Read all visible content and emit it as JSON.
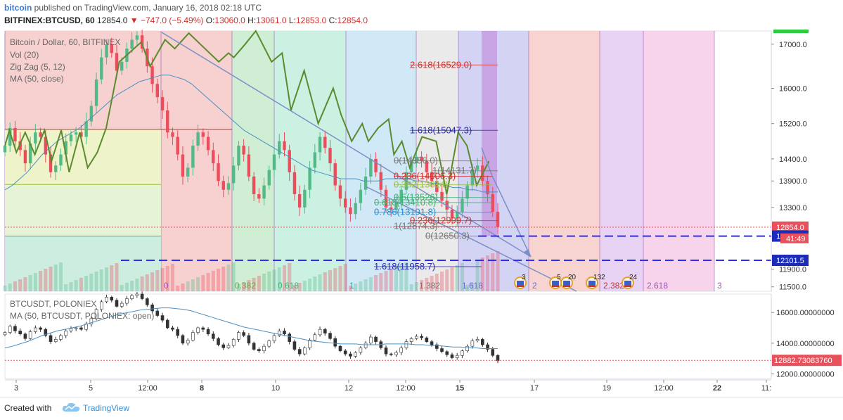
{
  "header": {
    "author": "bitcoin",
    "published_text": "published on TradingView.com, January 16, 2018 02:18 UTC",
    "symbol": "BITFINEX:BTCUSD, 60",
    "last": "12854.0",
    "change": "−747.0 (−5.49%)",
    "o_label": "O:",
    "o_value": "13060.0",
    "h_label": "H:",
    "h_value": "13061.0",
    "l_label": "L:",
    "l_value": "12853.0",
    "c_label": "C:",
    "c_value": "12854.0"
  },
  "footer": {
    "created": "Created with",
    "brand": "TradingView"
  },
  "colors": {
    "up": "#53b987",
    "down": "#eb4d5c",
    "zigzag": "#5b8a2f",
    "ma": "#4a90c2",
    "trend": "#7d8fc8",
    "dashed": "#2d2df0",
    "price_marker": "#e8505b",
    "axis_marker_blue": "#1c2cb8"
  },
  "chart_data": [
    {
      "type": "candlestick",
      "title": "Bitcoin / Dollar, 60, BITFINEX",
      "indicators": [
        "Vol (20)",
        "Zig Zag (5, 12)",
        "MA (50, close)"
      ],
      "y_ticks": [
        "17000.0",
        "16000.0",
        "15200.0",
        "14400.0",
        "13900.0",
        "13300.0",
        "11900.0",
        "11500.0"
      ],
      "ylim": [
        11400,
        17300
      ],
      "price_markers": [
        {
          "label": "12854.0",
          "value": 12854,
          "color": "#e8505b"
        },
        {
          "label": "12650.3",
          "value": 12650.3,
          "color": "#1c2cb8"
        },
        {
          "label": "12101.5",
          "value": 12101.5,
          "color": "#1c2cb8"
        }
      ],
      "countdown": "41:49",
      "close_series": [
        14700,
        15100,
        14800,
        14600,
        14300,
        14750,
        15000,
        14900,
        14500,
        14100,
        14250,
        14500,
        14800,
        14950,
        15000,
        14900,
        15250,
        15600,
        16200,
        16700,
        17000,
        16800,
        16400,
        16600,
        16900,
        17100,
        17200,
        16900,
        16500,
        16100,
        15800,
        15500,
        15000,
        14900,
        14500,
        14000,
        14200,
        14700,
        15000,
        14900,
        14600,
        14300,
        13900,
        13700,
        13850,
        14250,
        14700,
        14500,
        14000,
        13600,
        13500,
        13800,
        14150,
        14500,
        14800,
        14600,
        14100,
        13600,
        13300,
        13700,
        14200,
        14550,
        14900,
        14650,
        14300,
        13800,
        13500,
        13300,
        13150,
        13400,
        13700,
        14000,
        14400,
        14100,
        13700,
        13300,
        13250,
        13400,
        13700,
        14100,
        14300,
        14450,
        14350,
        14100,
        13900,
        13650,
        13450,
        13250,
        13050,
        13200,
        13500,
        13800,
        14150,
        14250,
        13900,
        13600,
        13200,
        12854
      ],
      "ma_series": [
        13700,
        13800,
        13950,
        14100,
        14300,
        14500,
        14650,
        14800,
        14900,
        15000,
        15100,
        15250,
        15400,
        15550,
        15700,
        15850,
        15950,
        16050,
        16150,
        16200,
        16250,
        16300,
        16300,
        16250,
        16200,
        16100,
        15950,
        15800,
        15650,
        15500,
        15350,
        15200,
        15050,
        14950,
        14850,
        14750,
        14650,
        14550,
        14450,
        14350,
        14250,
        14150,
        14100,
        14050,
        14000,
        13950,
        13950,
        13950,
        13900,
        13900,
        13900,
        13950,
        13950,
        13950,
        13950,
        13900,
        13900,
        13850,
        13850,
        13800,
        13750,
        13750,
        13700,
        13700,
        13650,
        13650,
        13650
      ],
      "zigzag": [
        [
          0,
          14700
        ],
        [
          0.5,
          15050
        ],
        [
          1.3,
          14550
        ],
        [
          2.3,
          15000
        ],
        [
          3.4,
          14500
        ],
        [
          4.5,
          15050
        ],
        [
          5.3,
          14350
        ],
        [
          6.4,
          15050
        ],
        [
          7.3,
          14100
        ],
        [
          8.5,
          15000
        ],
        [
          9.4,
          14200
        ],
        [
          10.5,
          14550
        ],
        [
          11.5,
          15100
        ],
        [
          13,
          16600
        ],
        [
          15.5,
          17150
        ],
        [
          16.5,
          16500
        ],
        [
          18.2,
          17200
        ],
        [
          19.3,
          17000
        ],
        [
          20.9,
          17350
        ],
        [
          22.2,
          17100
        ],
        [
          24.3,
          16600
        ],
        [
          25.4,
          16800
        ],
        [
          26,
          16700
        ],
        [
          27.3,
          17100
        ],
        [
          28.5,
          17400
        ],
        [
          30.3,
          16600
        ],
        [
          31.5,
          16900
        ],
        [
          32.5,
          15500
        ],
        [
          34,
          16400
        ],
        [
          35.6,
          15200
        ],
        [
          37.3,
          16000
        ],
        [
          38.2,
          15400
        ],
        [
          39.4,
          14800
        ],
        [
          40.6,
          15200
        ],
        [
          41.3,
          14800
        ],
        [
          42.4,
          15100
        ],
        [
          43.6,
          15300
        ],
        [
          44.2,
          14500
        ],
        [
          45.1,
          14800
        ],
        [
          46,
          14200
        ],
        [
          47.4,
          14900
        ],
        [
          49,
          14800
        ],
        [
          50.2,
          13600
        ],
        [
          51.5,
          15000
        ],
        [
          52.5,
          14700
        ],
        [
          53.6,
          13800
        ],
        [
          55,
          14350
        ]
      ],
      "fib_levels": [
        {
          "label": "2.618(16529.0)",
          "value": 16529,
          "color": "#d0312d"
        },
        {
          "label": "1.618(15047.3)",
          "value": 15047.3,
          "color": "#2a2aa8"
        },
        {
          "label": "0(14356.0)",
          "value": 14356,
          "color": "#777777"
        },
        {
          "label": "1(14131.7)",
          "value": 14131.7,
          "color": "#777777"
        },
        {
          "label": "0.236(14006.3)",
          "value": 14006.3,
          "color": "#d0312d"
        },
        {
          "label": "0.382(13814)",
          "value": 13814,
          "color": "#9bbf3f"
        },
        {
          "label": "0.5(13526)",
          "value": 13526,
          "color": "#3cb371"
        },
        {
          "label": "0.618(13410.8)",
          "value": 13410.8,
          "color": "#3cb371"
        },
        {
          "label": "0.786(13191.8)",
          "value": 13191.8,
          "color": "#1f8fd6"
        },
        {
          "label": "0.236(12999.7)",
          "value": 12999.7,
          "color": "#d0312d"
        },
        {
          "label": "1(12874.3)",
          "value": 12874.3,
          "color": "#777777"
        },
        {
          "label": "0(12650.3)",
          "value": 12650.3,
          "color": "#777777"
        },
        {
          "label": "1.618(11958.7)",
          "value": 11958.7,
          "color": "#2a2aa8"
        }
      ],
      "fib_time_labels": [
        "0",
        "0.382",
        "0.618",
        "1",
        "1.382",
        "1.618",
        "2",
        "2.382",
        "2.618",
        "3"
      ],
      "events": [
        "3",
        "5",
        "20",
        "132",
        "24"
      ]
    },
    {
      "type": "line",
      "title": "BTCUSDT, POLONIEX",
      "indicators": [
        "MA (50, BTCUSDT, POLONIEX: open)"
      ],
      "y_ticks": [
        "16000.00000000",
        "14000.00000000",
        "12000.00000000"
      ],
      "ylim": [
        11700,
        17200
      ],
      "price_marker": {
        "label": "12882.73083760",
        "value": 12882.7308376
      }
    }
  ],
  "x_ticks": [
    "3",
    "5",
    "12:00",
    "8",
    "10",
    "12",
    "12:00",
    "15",
    "17",
    "19",
    "12:00",
    "22",
    "11:"
  ]
}
